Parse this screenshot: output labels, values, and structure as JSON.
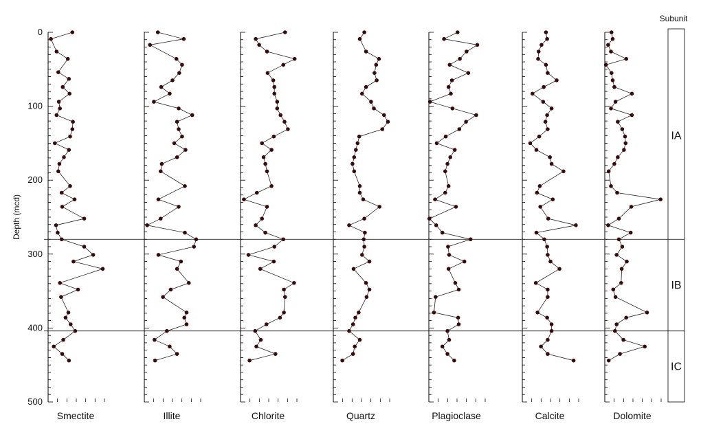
{
  "chart_data": {
    "type": "line",
    "ylabel": "Depth (mcd)",
    "y_ticks": [
      0,
      100,
      200,
      300,
      400,
      500
    ],
    "ylim": [
      0,
      500
    ],
    "subunit_header": "Subunit",
    "subunit_boundaries": [
      280,
      404
    ],
    "subunits": [
      {
        "name": "IA",
        "top": 0,
        "bottom": 280
      },
      {
        "name": "IB",
        "top": 280,
        "bottom": 404
      },
      {
        "name": "IC",
        "top": 404,
        "bottom": 500
      }
    ],
    "series": [
      {
        "name": "Smectite",
        "points": [
          [
            0.43,
            0
          ],
          [
            0.05,
            9
          ],
          [
            0.15,
            26
          ],
          [
            0.35,
            36
          ],
          [
            0.18,
            54
          ],
          [
            0.37,
            63
          ],
          [
            0.26,
            74
          ],
          [
            0.38,
            83
          ],
          [
            0.19,
            94
          ],
          [
            0.21,
            103
          ],
          [
            0.15,
            112
          ],
          [
            0.44,
            121
          ],
          [
            0.43,
            131
          ],
          [
            0.39,
            141
          ],
          [
            0.12,
            150
          ],
          [
            0.37,
            159
          ],
          [
            0.28,
            169
          ],
          [
            0.2,
            178
          ],
          [
            0.18,
            188
          ],
          [
            0.39,
            208
          ],
          [
            0.24,
            217
          ],
          [
            0.47,
            226
          ],
          [
            0.25,
            236
          ],
          [
            0.64,
            252
          ],
          [
            0.14,
            261
          ],
          [
            0.17,
            271
          ],
          [
            0.24,
            280
          ],
          [
            0.64,
            290
          ],
          [
            0.8,
            301
          ],
          [
            0.45,
            310
          ],
          [
            0.97,
            320
          ],
          [
            0.21,
            339
          ],
          [
            0.53,
            348
          ],
          [
            0.23,
            358
          ],
          [
            0.36,
            379
          ],
          [
            0.31,
            386
          ],
          [
            0.4,
            395
          ],
          [
            0.48,
            404
          ],
          [
            0.27,
            416
          ],
          [
            0.1,
            425
          ],
          [
            0.25,
            435
          ],
          [
            0.37,
            444
          ]
        ]
      },
      {
        "name": "Illite",
        "points": [
          [
            0.24,
            0
          ],
          [
            0.7,
            9
          ],
          [
            0.1,
            17
          ],
          [
            0.57,
            36
          ],
          [
            0.67,
            44
          ],
          [
            0.62,
            55
          ],
          [
            0.5,
            65
          ],
          [
            0.3,
            74
          ],
          [
            0.45,
            83
          ],
          [
            0.17,
            94
          ],
          [
            0.61,
            103
          ],
          [
            0.85,
            112
          ],
          [
            0.58,
            121
          ],
          [
            0.61,
            131
          ],
          [
            0.67,
            141
          ],
          [
            0.53,
            150
          ],
          [
            0.73,
            159
          ],
          [
            0.58,
            169
          ],
          [
            0.31,
            178
          ],
          [
            0.29,
            188
          ],
          [
            0.72,
            208
          ],
          [
            0.25,
            226
          ],
          [
            0.61,
            236
          ],
          [
            0.29,
            252
          ],
          [
            0.05,
            261
          ],
          [
            0.72,
            271
          ],
          [
            0.92,
            280
          ],
          [
            0.88,
            290
          ],
          [
            0.25,
            301
          ],
          [
            0.65,
            310
          ],
          [
            0.58,
            320
          ],
          [
            0.79,
            339
          ],
          [
            0.47,
            348
          ],
          [
            0.33,
            358
          ],
          [
            0.75,
            379
          ],
          [
            0.71,
            386
          ],
          [
            0.75,
            395
          ],
          [
            0.4,
            404
          ],
          [
            0.18,
            416
          ],
          [
            0.45,
            425
          ],
          [
            0.58,
            435
          ],
          [
            0.19,
            444
          ]
        ]
      },
      {
        "name": "Chlorite",
        "points": [
          [
            0.79,
            0
          ],
          [
            0.27,
            9
          ],
          [
            0.33,
            17
          ],
          [
            0.47,
            26
          ],
          [
            0.96,
            36
          ],
          [
            0.76,
            44
          ],
          [
            0.48,
            55
          ],
          [
            0.58,
            65
          ],
          [
            0.6,
            74
          ],
          [
            0.6,
            83
          ],
          [
            0.65,
            94
          ],
          [
            0.65,
            103
          ],
          [
            0.71,
            112
          ],
          [
            0.78,
            121
          ],
          [
            0.84,
            131
          ],
          [
            0.59,
            141
          ],
          [
            0.38,
            150
          ],
          [
            0.55,
            159
          ],
          [
            0.41,
            169
          ],
          [
            0.44,
            178
          ],
          [
            0.47,
            188
          ],
          [
            0.55,
            208
          ],
          [
            0.29,
            217
          ],
          [
            0.06,
            226
          ],
          [
            0.47,
            236
          ],
          [
            0.38,
            252
          ],
          [
            0.27,
            261
          ],
          [
            0.44,
            271
          ],
          [
            0.76,
            280
          ],
          [
            0.6,
            290
          ],
          [
            0.14,
            301
          ],
          [
            0.59,
            310
          ],
          [
            0.35,
            320
          ],
          [
            0.95,
            339
          ],
          [
            0.77,
            348
          ],
          [
            0.79,
            358
          ],
          [
            0.77,
            379
          ],
          [
            0.7,
            386
          ],
          [
            0.46,
            395
          ],
          [
            0.26,
            404
          ],
          [
            0.36,
            416
          ],
          [
            0.28,
            425
          ],
          [
            0.62,
            435
          ],
          [
            0.16,
            444
          ]
        ]
      },
      {
        "name": "Quartz",
        "points": [
          [
            0.55,
            0
          ],
          [
            0.47,
            9
          ],
          [
            0.58,
            26
          ],
          [
            0.81,
            36
          ],
          [
            0.76,
            44
          ],
          [
            0.73,
            55
          ],
          [
            0.77,
            65
          ],
          [
            0.58,
            74
          ],
          [
            0.51,
            83
          ],
          [
            0.67,
            94
          ],
          [
            0.72,
            103
          ],
          [
            0.9,
            112
          ],
          [
            0.97,
            121
          ],
          [
            0.87,
            131
          ],
          [
            0.46,
            141
          ],
          [
            0.43,
            150
          ],
          [
            0.4,
            159
          ],
          [
            0.37,
            169
          ],
          [
            0.34,
            178
          ],
          [
            0.37,
            188
          ],
          [
            0.47,
            208
          ],
          [
            0.47,
            217
          ],
          [
            0.53,
            226
          ],
          [
            0.82,
            236
          ],
          [
            0.55,
            252
          ],
          [
            0.28,
            261
          ],
          [
            0.56,
            271
          ],
          [
            0.54,
            280
          ],
          [
            0.55,
            290
          ],
          [
            0.51,
            301
          ],
          [
            0.64,
            310
          ],
          [
            0.36,
            320
          ],
          [
            0.58,
            339
          ],
          [
            0.64,
            348
          ],
          [
            0.59,
            358
          ],
          [
            0.45,
            379
          ],
          [
            0.39,
            386
          ],
          [
            0.35,
            395
          ],
          [
            0.28,
            404
          ],
          [
            0.47,
            416
          ],
          [
            0.38,
            425
          ],
          [
            0.35,
            435
          ],
          [
            0.16,
            444
          ]
        ]
      },
      {
        "name": "Plagioclase",
        "points": [
          [
            0.51,
            0
          ],
          [
            0.27,
            9
          ],
          [
            0.86,
            17
          ],
          [
            0.67,
            26
          ],
          [
            0.55,
            36
          ],
          [
            0.37,
            44
          ],
          [
            0.7,
            55
          ],
          [
            0.41,
            65
          ],
          [
            0.35,
            74
          ],
          [
            0.39,
            83
          ],
          [
            0.02,
            94
          ],
          [
            0.42,
            103
          ],
          [
            0.84,
            112
          ],
          [
            0.66,
            121
          ],
          [
            0.54,
            131
          ],
          [
            0.3,
            141
          ],
          [
            0.14,
            150
          ],
          [
            0.46,
            159
          ],
          [
            0.38,
            169
          ],
          [
            0.33,
            178
          ],
          [
            0.29,
            188
          ],
          [
            0.35,
            208
          ],
          [
            0.29,
            217
          ],
          [
            0.11,
            226
          ],
          [
            0.48,
            236
          ],
          [
            0.01,
            252
          ],
          [
            0.13,
            261
          ],
          [
            0.24,
            271
          ],
          [
            0.74,
            280
          ],
          [
            0.34,
            290
          ],
          [
            0.36,
            301
          ],
          [
            0.63,
            310
          ],
          [
            0.35,
            320
          ],
          [
            0.47,
            339
          ],
          [
            0.53,
            348
          ],
          [
            0.12,
            358
          ],
          [
            0.09,
            379
          ],
          [
            0.52,
            386
          ],
          [
            0.53,
            395
          ],
          [
            0.33,
            404
          ],
          [
            0.36,
            416
          ],
          [
            0.24,
            425
          ],
          [
            0.33,
            435
          ],
          [
            0.45,
            444
          ]
        ]
      },
      {
        "name": "Calcite",
        "points": [
          [
            0.42,
            0
          ],
          [
            0.44,
            9
          ],
          [
            0.34,
            17
          ],
          [
            0.29,
            26
          ],
          [
            0.28,
            36
          ],
          [
            0.42,
            44
          ],
          [
            0.45,
            55
          ],
          [
            0.61,
            65
          ],
          [
            0.38,
            74
          ],
          [
            0.18,
            83
          ],
          [
            0.37,
            94
          ],
          [
            0.52,
            103
          ],
          [
            0.44,
            112
          ],
          [
            0.41,
            121
          ],
          [
            0.45,
            131
          ],
          [
            0.3,
            141
          ],
          [
            0.14,
            150
          ],
          [
            0.25,
            159
          ],
          [
            0.49,
            169
          ],
          [
            0.52,
            178
          ],
          [
            0.73,
            188
          ],
          [
            0.31,
            208
          ],
          [
            0.26,
            217
          ],
          [
            0.54,
            226
          ],
          [
            0.32,
            236
          ],
          [
            0.46,
            252
          ],
          [
            0.95,
            261
          ],
          [
            0.25,
            271
          ],
          [
            0.39,
            280
          ],
          [
            0.44,
            290
          ],
          [
            0.45,
            301
          ],
          [
            0.5,
            310
          ],
          [
            0.66,
            320
          ],
          [
            0.24,
            339
          ],
          [
            0.45,
            348
          ],
          [
            0.45,
            358
          ],
          [
            0.27,
            379
          ],
          [
            0.44,
            386
          ],
          [
            0.52,
            395
          ],
          [
            0.52,
            404
          ],
          [
            0.45,
            416
          ],
          [
            0.33,
            425
          ],
          [
            0.45,
            435
          ],
          [
            0.91,
            444
          ]
        ]
      },
      {
        "name": "Dolomite",
        "points": [
          [
            0.12,
            0
          ],
          [
            0.14,
            9
          ],
          [
            0.06,
            17
          ],
          [
            0.11,
            26
          ],
          [
            0.38,
            36
          ],
          [
            0.02,
            44
          ],
          [
            0.12,
            55
          ],
          [
            0.14,
            65
          ],
          [
            0.17,
            74
          ],
          [
            0.48,
            83
          ],
          [
            0.19,
            94
          ],
          [
            0.11,
            103
          ],
          [
            0.48,
            112
          ],
          [
            0.23,
            121
          ],
          [
            0.31,
            131
          ],
          [
            0.36,
            141
          ],
          [
            0.37,
            150
          ],
          [
            0.34,
            159
          ],
          [
            0.23,
            169
          ],
          [
            0.17,
            178
          ],
          [
            0.07,
            188
          ],
          [
            0.11,
            208
          ],
          [
            0.22,
            217
          ],
          [
            0.99,
            226
          ],
          [
            0.47,
            236
          ],
          [
            0.25,
            252
          ],
          [
            0.06,
            261
          ],
          [
            0.46,
            271
          ],
          [
            0.25,
            280
          ],
          [
            0.31,
            290
          ],
          [
            0.21,
            301
          ],
          [
            0.39,
            310
          ],
          [
            0.3,
            320
          ],
          [
            0.29,
            339
          ],
          [
            0.15,
            348
          ],
          [
            0.19,
            358
          ],
          [
            0.75,
            379
          ],
          [
            0.38,
            386
          ],
          [
            0.21,
            395
          ],
          [
            0.18,
            404
          ],
          [
            0.33,
            416
          ],
          [
            0.71,
            425
          ],
          [
            0.27,
            435
          ],
          [
            0.07,
            444
          ]
        ]
      }
    ]
  }
}
